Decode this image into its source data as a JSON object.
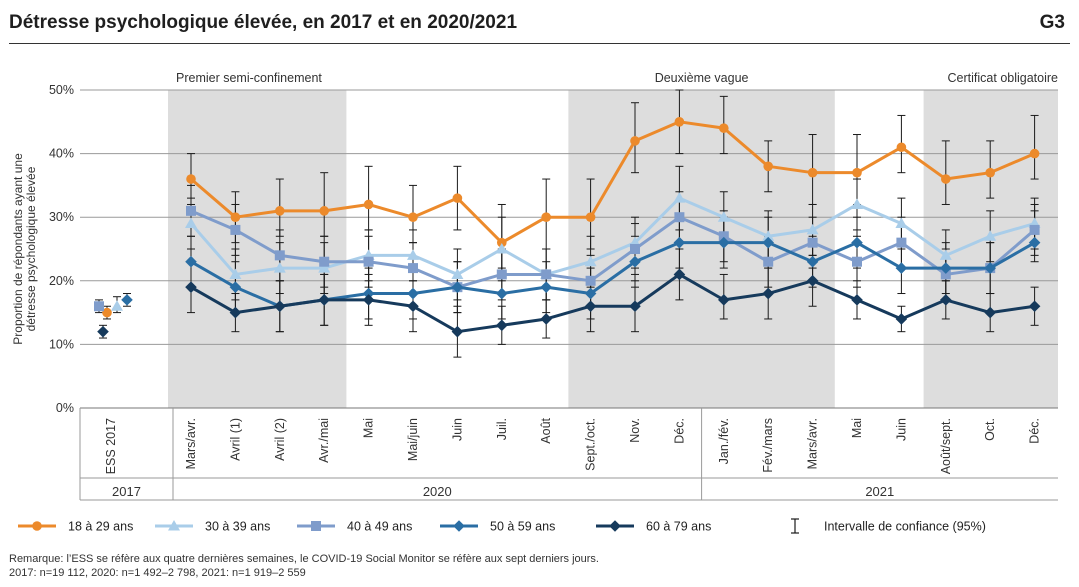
{
  "header": {
    "title": "Détresse psychologique élevée, en 2017 et en 2020/2021",
    "code": "G3"
  },
  "notes": {
    "remark": "Remarque: l’ESS se réfère aux quatre dernières semaines, le COVID-19 Social Monitor se réfère aux sept derniers jours.",
    "sample": "2017: n=19 112, 2020: n=1 492–2 798, 2021: n=1 919–2 559"
  },
  "legend": {
    "ci_label": "Intervalle de confiance (95%)"
  },
  "chart_data": {
    "type": "line",
    "ylabel": "Proportion de répondants ayant une détresse psychologique élevée",
    "ylim": [
      0,
      50
    ],
    "yticks": [
      "0%",
      "10%",
      "20%",
      "30%",
      "40%",
      "50%"
    ],
    "grid": true,
    "legend_position": "bottom",
    "categories": [
      "ESS 2017",
      "Mars/avr.",
      "Avril (1)",
      "Avril (2)",
      "Avr./mai",
      "Mai",
      "Mai/juin",
      "Juin",
      "Juil.",
      "Août",
      "Sept./oct.",
      "Nov.",
      "Déc.",
      "Jan./fév.",
      "Fév./mars",
      "Mars/avr.",
      "Mai",
      "Juin",
      "Août/sept.",
      "Oct.",
      "Déc."
    ],
    "year_groups": [
      {
        "label": "2017",
        "from": 0,
        "to": 0
      },
      {
        "label": "2020",
        "from": 1,
        "to": 12
      },
      {
        "label": "2021",
        "from": 13,
        "to": 20
      }
    ],
    "periods": [
      {
        "label": "Premier semi-confinement",
        "from": 1,
        "to": 4
      },
      {
        "label": "Deuxième vague",
        "from": 10,
        "to": 15
      },
      {
        "label": "Certificat obligatoire",
        "from": 18,
        "to": 20
      }
    ],
    "series": [
      {
        "name": "18 à 29 ans",
        "color": "#ec8a2b",
        "marker": "circle",
        "ess": {
          "value": 15,
          "lo": 14,
          "hi": 16
        },
        "x": [
          1,
          2,
          3,
          4,
          5,
          6,
          7,
          8,
          9,
          10,
          11,
          12,
          13,
          14,
          15,
          16,
          17,
          18,
          19,
          20
        ],
        "values": [
          36,
          30,
          31,
          31,
          32,
          30,
          33,
          26,
          30,
          30,
          42,
          45,
          44,
          38,
          37,
          37,
          41,
          36,
          37,
          40
        ],
        "lo": [
          32,
          26,
          27,
          27,
          28,
          26,
          28,
          21,
          25,
          25,
          37,
          40,
          40,
          34,
          32,
          32,
          37,
          32,
          33,
          36
        ],
        "hi": [
          40,
          34,
          36,
          37,
          38,
          35,
          38,
          32,
          36,
          36,
          48,
          50,
          49,
          42,
          43,
          43,
          46,
          42,
          42,
          46
        ]
      },
      {
        "name": "30 à 39 ans",
        "color": "#a9cde9",
        "marker": "triangle",
        "ess": {
          "value": 16,
          "lo": 15,
          "hi": 17.5
        },
        "x": [
          1,
          2,
          3,
          4,
          5,
          6,
          7,
          8,
          9,
          10,
          11,
          12,
          13,
          14,
          15,
          16,
          17,
          18,
          19,
          20
        ],
        "values": [
          29,
          21,
          22,
          22,
          24,
          24,
          21,
          25,
          21,
          23,
          26,
          33,
          30,
          27,
          28,
          32,
          29,
          24,
          27,
          29
        ],
        "lo": [
          25,
          17,
          18,
          18,
          20,
          20,
          17,
          20,
          17,
          19,
          22,
          28,
          26,
          23,
          24,
          28,
          25,
          20,
          23,
          25
        ],
        "hi": [
          33,
          25,
          26,
          26,
          28,
          28,
          25,
          30,
          25,
          27,
          30,
          38,
          34,
          31,
          32,
          36,
          33,
          28,
          31,
          33
        ]
      },
      {
        "name": "40 à 49 ans",
        "color": "#7f9ccb",
        "marker": "square",
        "ess": {
          "value": 16,
          "lo": 15,
          "hi": 17
        },
        "x": [
          1,
          2,
          3,
          4,
          5,
          6,
          7,
          8,
          9,
          10,
          11,
          12,
          13,
          14,
          15,
          16,
          17,
          18,
          19,
          20
        ],
        "values": [
          31,
          28,
          24,
          23,
          23,
          22,
          19,
          21,
          21,
          20,
          25,
          30,
          27,
          23,
          26,
          23,
          26,
          21,
          22,
          28
        ],
        "lo": [
          27,
          24,
          20,
          19,
          19,
          18,
          15,
          17,
          17,
          16,
          21,
          26,
          23,
          19,
          22,
          19,
          22,
          17,
          18,
          24
        ],
        "hi": [
          35,
          32,
          28,
          27,
          27,
          26,
          23,
          25,
          25,
          24,
          29,
          34,
          31,
          27,
          30,
          27,
          30,
          25,
          26,
          32
        ]
      },
      {
        "name": "50 à 59 ans",
        "color": "#2a6ea4",
        "marker": "diamond",
        "ess": {
          "value": 17,
          "lo": 16,
          "hi": 18
        },
        "x": [
          1,
          2,
          3,
          4,
          5,
          6,
          7,
          8,
          9,
          10,
          11,
          12,
          13,
          14,
          15,
          16,
          17,
          18,
          19,
          20
        ],
        "values": [
          23,
          19,
          16,
          17,
          18,
          18,
          19,
          18,
          19,
          18,
          23,
          26,
          26,
          26,
          23,
          26,
          22,
          22,
          22,
          26
        ],
        "lo": [
          19,
          15,
          12,
          13,
          14,
          14,
          15,
          14,
          15,
          14,
          19,
          22,
          22,
          22,
          19,
          22,
          18,
          18,
          18,
          23
        ],
        "hi": [
          27,
          23,
          20,
          21,
          22,
          22,
          23,
          22,
          23,
          22,
          27,
          30,
          30,
          30,
          27,
          30,
          26,
          26,
          26,
          31
        ]
      },
      {
        "name": "60 à 79 ans",
        "color": "#163a5c",
        "marker": "diamond",
        "ess": {
          "value": 12,
          "lo": 11,
          "hi": 13
        },
        "x": [
          1,
          2,
          3,
          4,
          5,
          6,
          7,
          8,
          9,
          10,
          11,
          12,
          13,
          14,
          15,
          16,
          17,
          18,
          19,
          20
        ],
        "values": [
          19,
          15,
          16,
          17,
          17,
          16,
          12,
          13,
          14,
          16,
          16,
          21,
          17,
          18,
          20,
          17,
          14,
          17,
          15,
          16
        ],
        "lo": [
          15,
          12,
          12,
          13,
          13,
          12,
          8,
          10,
          11,
          12,
          12,
          17,
          14,
          14,
          16,
          14,
          12,
          14,
          12,
          13
        ],
        "hi": [
          23,
          18,
          20,
          21,
          21,
          20,
          16,
          16,
          17,
          20,
          20,
          25,
          21,
          22,
          24,
          20,
          16,
          20,
          18,
          19
        ]
      }
    ]
  }
}
